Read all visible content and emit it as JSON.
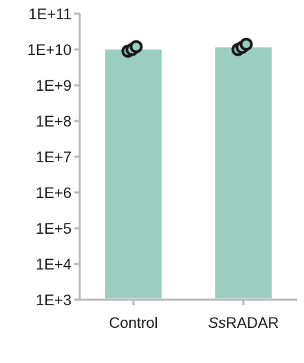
{
  "chart_data": {
    "type": "bar",
    "scale": "log10",
    "categories": [
      "Control",
      "SsRADAR"
    ],
    "category_labels": [
      {
        "parts": [
          {
            "text": "Control",
            "italic": false
          }
        ]
      },
      {
        "parts": [
          {
            "text": "Ss",
            "italic": true
          },
          {
            "text": "RADAR",
            "italic": false
          }
        ]
      }
    ],
    "values": [
      10000000000.0,
      11500000000.0
    ],
    "points": [
      [
        9000000000.0,
        10000000000.0,
        12000000000.0
      ],
      [
        10000000000.0,
        11500000000.0,
        14000000000.0
      ]
    ],
    "yticks": [
      1000.0,
      10000.0,
      100000.0,
      1000000.0,
      10000000.0,
      100000000.0,
      1000000000.0,
      10000000000.0,
      100000000000.0
    ],
    "ytick_labels": [
      "1E+3",
      "1E+4",
      "1E+5",
      "1E+6",
      "1E+7",
      "1E+8",
      "1E+9",
      "1E+10",
      "1E+11"
    ],
    "ylim": [
      1000.0,
      100000000000.0
    ],
    "title": "",
    "xlabel": "",
    "ylabel": "",
    "grid": false,
    "legend": "none",
    "colors": {
      "bar": "#9acfbf",
      "point_fill": "#9acfbf",
      "point_edge": "#1a1a1a",
      "axis": "#b8b8b8"
    }
  }
}
